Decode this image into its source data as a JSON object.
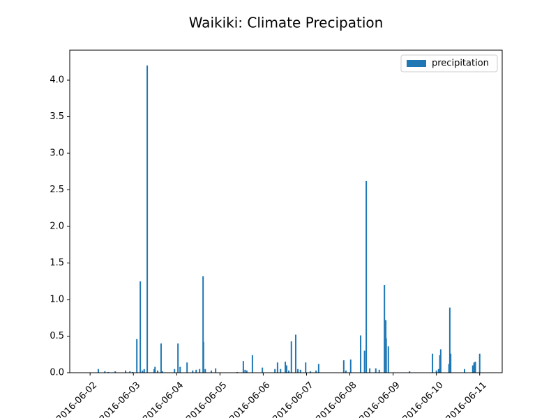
{
  "chart_data": {
    "type": "bar",
    "title": "Waikiki: Climate Precipation",
    "x": [
      2.19,
      2.34,
      2.42,
      2.58,
      2.82,
      2.92,
      2.98,
      3.08,
      3.16,
      3.21,
      3.25,
      3.32,
      3.48,
      3.5,
      3.56,
      3.64,
      3.67,
      3.95,
      4.03,
      4.08,
      4.24,
      4.37,
      4.45,
      4.53,
      4.61,
      4.62,
      4.66,
      4.8,
      4.9,
      5.4,
      5.54,
      5.58,
      5.62,
      5.75,
      5.98,
      6.27,
      6.33,
      6.4,
      6.51,
      6.54,
      6.59,
      6.65,
      6.75,
      6.8,
      6.86,
      6.98,
      7.09,
      7.22,
      7.28,
      7.86,
      7.91,
      8.02,
      8.25,
      8.34,
      8.38,
      8.46,
      8.6,
      8.68,
      8.8,
      8.83,
      8.84,
      8.89,
      9.38,
      9.91,
      10.0,
      10.05,
      10.08,
      10.1,
      10.29,
      10.31,
      10.33,
      10.65,
      10.84,
      10.87,
      10.9,
      11.0
    ],
    "series": [
      {
        "name": "precipitation",
        "color": "#1f77b4",
        "values": [
          0.05,
          0.02,
          0.01,
          0.02,
          0.03,
          0.02,
          0.01,
          0.46,
          1.25,
          0.03,
          0.05,
          4.2,
          0.05,
          0.08,
          0.03,
          0.4,
          0.02,
          0.05,
          0.4,
          0.08,
          0.14,
          0.03,
          0.04,
          0.05,
          1.32,
          0.42,
          0.05,
          0.03,
          0.06,
          0.01,
          0.16,
          0.04,
          0.03,
          0.24,
          0.07,
          0.05,
          0.14,
          0.05,
          0.15,
          0.1,
          0.03,
          0.43,
          0.52,
          0.05,
          0.04,
          0.14,
          0.02,
          0.03,
          0.12,
          0.17,
          0.03,
          0.18,
          0.51,
          0.3,
          2.62,
          0.06,
          0.06,
          0.04,
          1.2,
          0.72,
          0.47,
          0.36,
          0.02,
          0.26,
          0.03,
          0.05,
          0.24,
          0.32,
          0.12,
          0.89,
          0.26,
          0.05,
          0.1,
          0.14,
          0.15,
          0.26
        ]
      }
    ],
    "xlim": [
      1.53,
      11.52
    ],
    "xticks": [
      {
        "value": 2,
        "label": "2016-06-02"
      },
      {
        "value": 3,
        "label": "2016-06-03"
      },
      {
        "value": 4,
        "label": "2016-06-04"
      },
      {
        "value": 5,
        "label": "2016-06-05"
      },
      {
        "value": 6,
        "label": "2016-06-06"
      },
      {
        "value": 7,
        "label": "2016-06-07"
      },
      {
        "value": 8,
        "label": "2016-06-08"
      },
      {
        "value": 9,
        "label": "2016-06-09"
      },
      {
        "value": 10,
        "label": "2016-06-10"
      },
      {
        "value": 11,
        "label": "2016-06-11"
      }
    ],
    "ylim": [
      0,
      4.41
    ],
    "yticks": [
      {
        "value": 0,
        "label": "0.0"
      },
      0.5,
      {
        "value": 1,
        "label": "1.0"
      },
      1.5,
      {
        "value": 2,
        "label": "2.0"
      },
      2.5,
      {
        "value": 3,
        "label": "3.0"
      },
      3.5,
      {
        "value": 4,
        "label": "4.0"
      }
    ],
    "legend": "upper right"
  }
}
